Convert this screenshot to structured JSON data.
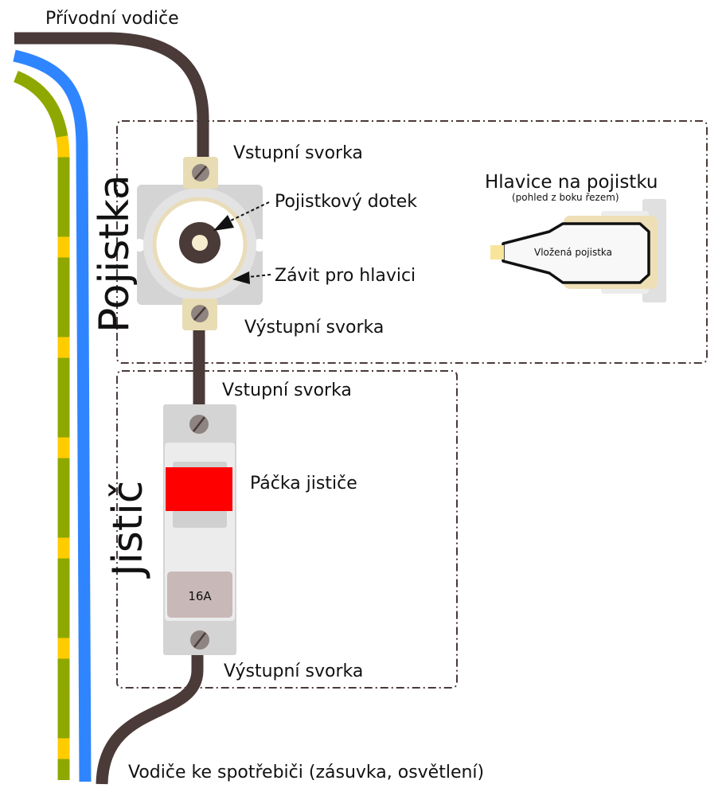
{
  "labels": {
    "supply_wires": "Přívodní vodiče",
    "fuse_title": "Pojistka",
    "fuse_input": "Vstupní svorka",
    "fuse_contact": "Pojistkový dotek",
    "fuse_thread": "Závit pro hlavici",
    "fuse_output": "Výstupní svorka",
    "cap_title": "Hlavice na pojistku",
    "cap_subtitle": "(pohled z boku řezem)",
    "cap_inserted_fuse": "Vložená pojistka",
    "breaker_title": "Jistič",
    "breaker_input": "Vstupní svorka",
    "breaker_lever": "Páčka jističe",
    "breaker_rating": "16A",
    "breaker_output": "Výstupní svorka",
    "load_wires": "Vodiče ke spotřebiči (zásuvka, osvětlení)"
  },
  "colors": {
    "phase_wire": "#4a3a38",
    "neutral_wire": "#2f85ff",
    "earth_wire_green": "#8fa800",
    "earth_wire_yellow": "#ffcc00",
    "lever": "#ff0000",
    "terminal": "#e8dcb4",
    "housing": "#d4d4d4",
    "rating_plate": "#c9b8b8"
  }
}
